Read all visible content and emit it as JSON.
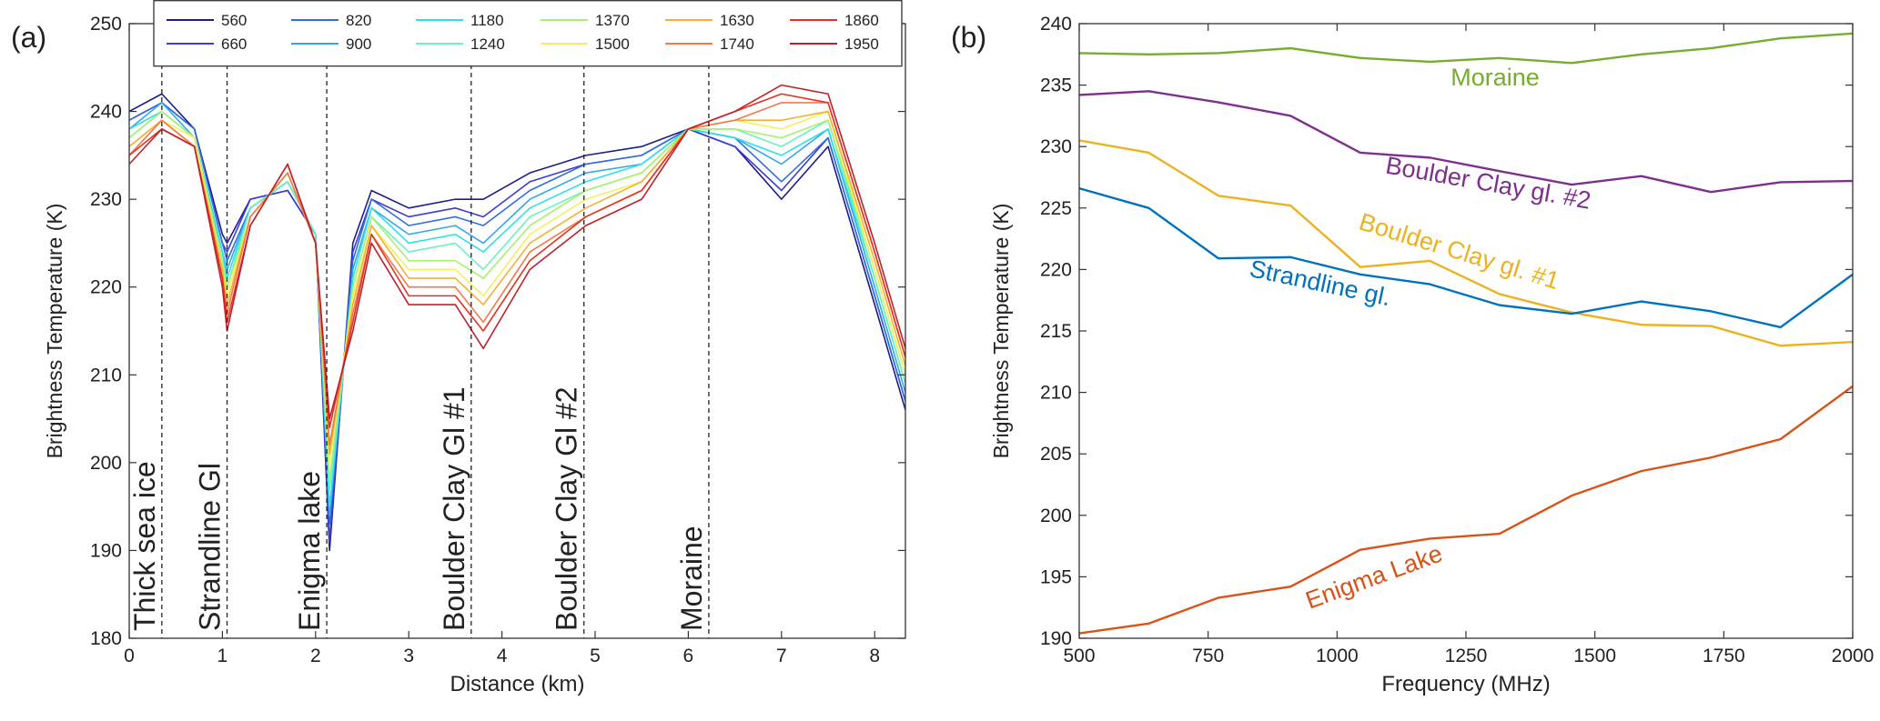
{
  "chart_data": [
    {
      "type": "line",
      "panel_label": "(a)",
      "xlabel": "Distance (km)",
      "ylabel": "Brightness Temperature (K)",
      "x": [
        0,
        0.35,
        0.7,
        1.0,
        1.05,
        1.3,
        1.7,
        2.0,
        2.15,
        2.4,
        2.6,
        3.0,
        3.5,
        3.8,
        4.3,
        4.9,
        5.5,
        6.0,
        6.5,
        7.0,
        7.5,
        8.0,
        8.33
      ],
      "xlim": [
        0,
        8.33
      ],
      "xticks": [
        0,
        1,
        2,
        3,
        4,
        5,
        6,
        7,
        8
      ],
      "ylim": [
        180,
        250
      ],
      "yticks": [
        180,
        190,
        200,
        210,
        220,
        230,
        240,
        250
      ],
      "legend": "top",
      "series": [
        {
          "name": "560",
          "color": "#1c1c8a",
          "values": [
            240,
            242,
            238,
            226,
            225,
            230,
            231,
            226,
            190,
            225,
            231,
            229,
            230,
            230,
            233,
            235,
            236,
            238,
            236,
            230,
            236,
            218,
            206
          ]
        },
        {
          "name": "660",
          "color": "#3b3bd6",
          "values": [
            239,
            241,
            238,
            225,
            224,
            230,
            231,
            226,
            191,
            224,
            230,
            228,
            229,
            228,
            232,
            234,
            235,
            238,
            236,
            231,
            237,
            219,
            207
          ]
        },
        {
          "name": "820",
          "color": "#2f6fd8",
          "values": [
            239,
            241,
            238,
            225,
            223,
            229,
            232,
            226,
            193,
            223,
            230,
            227,
            228,
            227,
            231,
            234,
            235,
            238,
            237,
            232,
            237,
            219,
            207
          ]
        },
        {
          "name": "900",
          "color": "#34a8ea",
          "values": [
            238,
            241,
            237,
            224,
            222,
            229,
            232,
            226,
            194,
            222,
            229,
            226,
            227,
            225,
            230,
            233,
            234,
            238,
            237,
            234,
            238,
            220,
            208
          ]
        },
        {
          "name": "1180",
          "color": "#2ee0e6",
          "values": [
            238,
            240,
            237,
            224,
            221,
            229,
            232,
            226,
            195,
            221,
            229,
            225,
            226,
            224,
            229,
            232,
            234,
            238,
            237,
            235,
            238,
            221,
            209
          ]
        },
        {
          "name": "1240",
          "color": "#6cf0c0",
          "values": [
            237,
            240,
            237,
            223,
            220,
            229,
            232,
            226,
            197,
            220,
            228,
            224,
            225,
            222,
            228,
            231,
            233,
            238,
            238,
            236,
            239,
            221,
            209
          ]
        },
        {
          "name": "1370",
          "color": "#a8f070",
          "values": [
            237,
            240,
            237,
            223,
            220,
            228,
            233,
            225,
            198,
            220,
            228,
            223,
            223,
            221,
            227,
            231,
            233,
            238,
            238,
            237,
            239,
            222,
            210
          ]
        },
        {
          "name": "1500",
          "color": "#f2f060",
          "values": [
            236,
            239,
            237,
            222,
            219,
            228,
            233,
            225,
            200,
            219,
            227,
            222,
            222,
            219,
            226,
            230,
            232,
            238,
            239,
            238,
            240,
            222,
            210
          ]
        },
        {
          "name": "1630",
          "color": "#f4b032",
          "values": [
            236,
            239,
            236,
            222,
            218,
            228,
            233,
            225,
            201,
            218,
            227,
            221,
            221,
            218,
            225,
            229,
            232,
            238,
            239,
            239,
            240,
            223,
            211
          ]
        },
        {
          "name": "1740",
          "color": "#f27a4a",
          "values": [
            235,
            239,
            236,
            221,
            217,
            228,
            233,
            225,
            202,
            217,
            226,
            220,
            220,
            216,
            224,
            228,
            231,
            238,
            239,
            241,
            241,
            224,
            212
          ]
        },
        {
          "name": "1860",
          "color": "#e03422",
          "values": [
            235,
            238,
            236,
            221,
            216,
            227,
            234,
            225,
            204,
            216,
            226,
            219,
            219,
            215,
            223,
            228,
            231,
            238,
            240,
            242,
            241,
            224,
            212
          ]
        },
        {
          "name": "1950",
          "color": "#c0202a",
          "values": [
            234,
            238,
            236,
            220,
            215,
            227,
            234,
            225,
            205,
            215,
            225,
            218,
            218,
            213,
            222,
            227,
            230,
            238,
            240,
            243,
            242,
            225,
            213
          ]
        }
      ],
      "annotations": [
        {
          "text": "Thick sea ice",
          "x": 0.35
        },
        {
          "text": "Strandline Gl",
          "x": 1.05
        },
        {
          "text": "Enigma lake",
          "x": 2.12
        },
        {
          "text": "Boulder Clay Gl #1",
          "x": 3.67
        },
        {
          "text": "Boulder Clay Gl #2",
          "x": 4.88
        },
        {
          "text": "Moraine",
          "x": 6.22
        }
      ]
    },
    {
      "type": "line",
      "panel_label": "(b)",
      "xlabel": "Frequency (MHz)",
      "ylabel": "Brightness Temperature (K)",
      "x": [
        500,
        635,
        770,
        910,
        1045,
        1180,
        1315,
        1455,
        1590,
        1725,
        1860,
        2000
      ],
      "xlim": [
        500,
        2000
      ],
      "xticks": [
        500,
        750,
        1000,
        1250,
        1500,
        1750,
        2000
      ],
      "ylim": [
        190,
        240
      ],
      "yticks": [
        190,
        195,
        200,
        205,
        210,
        215,
        220,
        225,
        230,
        235,
        240
      ],
      "series": [
        {
          "name": "Moraine",
          "color": "#77ac30",
          "values": [
            237.6,
            237.5,
            237.6,
            238,
            237.2,
            236.9,
            237.2,
            236.8,
            237.5,
            238,
            238.8,
            239.2
          ]
        },
        {
          "name": "Boulder Clay gl. #2",
          "color": "#7e2f8e",
          "values": [
            234.2,
            234.5,
            233.6,
            232.5,
            229.5,
            229.1,
            228,
            226.9,
            227.6,
            226.3,
            227.1,
            227.2
          ]
        },
        {
          "name": "Boulder Clay gl. #1",
          "color": "#edb120",
          "values": [
            230.5,
            229.5,
            226,
            225.2,
            220.2,
            220.7,
            218,
            216.5,
            215.5,
            215.4,
            213.8,
            214.1
          ]
        },
        {
          "name": "Strandline gl.",
          "color": "#0072bd",
          "values": [
            226.6,
            225,
            220.9,
            221,
            219.6,
            218.8,
            217.1,
            216.4,
            217.4,
            216.6,
            215.3,
            219.6
          ]
        },
        {
          "name": "Enigma Lake",
          "color": "#d95319",
          "values": [
            190.4,
            191.2,
            193.3,
            194.2,
            197.2,
            198.1,
            198.5,
            201.6,
            203.6,
            204.7,
            206.2,
            210.5
          ]
        }
      ]
    }
  ]
}
